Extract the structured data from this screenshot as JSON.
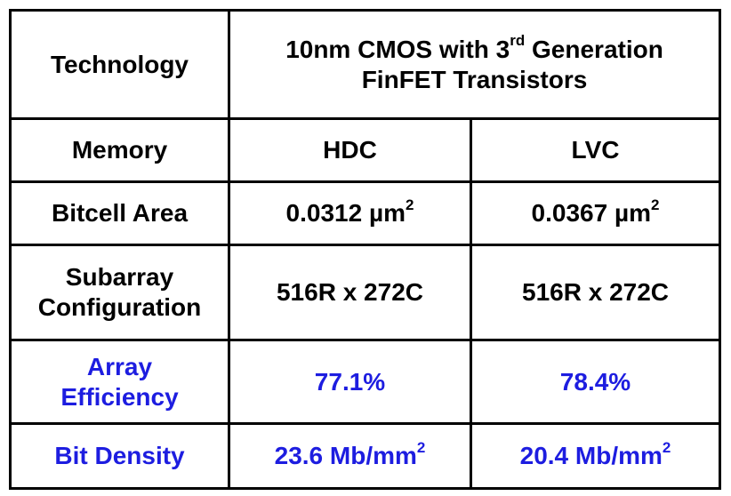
{
  "table": {
    "header": {
      "label": "Technology",
      "value_line1_pre": "10nm CMOS with 3",
      "value_line1_sup": "rd",
      "value_line1_post": " Generation",
      "value_line2": "FinFET Transistors"
    },
    "rows": {
      "memory": {
        "label": "Memory",
        "hdc": "HDC",
        "lvc": "LVC"
      },
      "bitcell_area": {
        "label": "Bitcell Area",
        "hdc": "0.0312 µm",
        "hdc_sup": "2",
        "lvc": "0.0367 µm",
        "lvc_sup": "2"
      },
      "subarray": {
        "label_line1": "Subarray",
        "label_line2": "Configuration",
        "hdc": "516R x 272C",
        "lvc": "516R x 272C"
      },
      "array_efficiency": {
        "label_line1": "Array",
        "label_line2": "Efficiency",
        "hdc": "77.1%",
        "lvc": "78.4%"
      },
      "bit_density": {
        "label": "Bit Density",
        "hdc": "23.6 Mb/mm",
        "hdc_sup": "2",
        "lvc": "20.4 Mb/mm",
        "lvc_sup": "2"
      }
    }
  },
  "colors": {
    "text": "#000000",
    "accent": "#1d1de0",
    "border": "#000000",
    "background": "#ffffff"
  }
}
